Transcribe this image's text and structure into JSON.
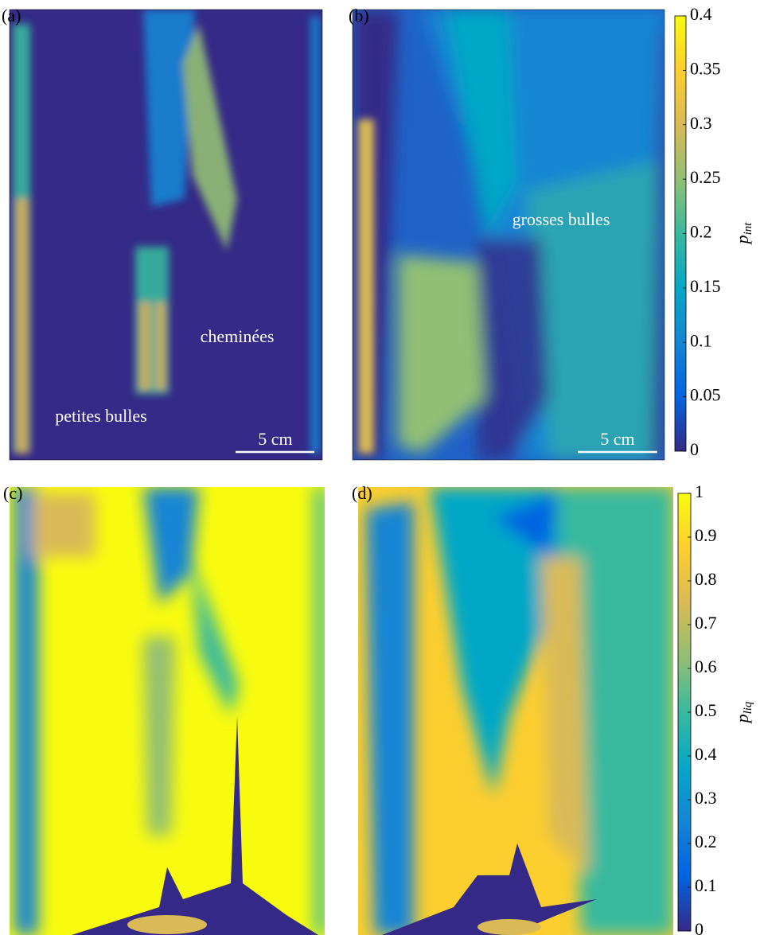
{
  "panels": [
    {
      "label": "(a)",
      "annotations": [
        "cheminées",
        "petites bulles"
      ],
      "scale_bar": "5 cm"
    },
    {
      "label": "(b)",
      "annotations": [
        "grosses bulles"
      ],
      "scale_bar": "5 cm"
    },
    {
      "label": "(c)"
    },
    {
      "label": "(d)"
    }
  ],
  "colorbars": [
    {
      "symbol": "p",
      "subscript": "int",
      "lim": [
        0,
        0.4
      ],
      "ticks": [
        0,
        0.05,
        0.1,
        0.15,
        0.2,
        0.25,
        0.3,
        0.35,
        0.4
      ]
    },
    {
      "symbol": "p",
      "subscript": "liq",
      "lim": [
        0,
        1
      ],
      "ticks": [
        0,
        0.1,
        0.2,
        0.3,
        0.4,
        0.5,
        0.6,
        0.7,
        0.8,
        0.9,
        1
      ]
    }
  ],
  "colormap": [
    "#352a87",
    "#0363e1",
    "#1485d4",
    "#06a7c6",
    "#38b99e",
    "#92bf73",
    "#d9ba56",
    "#fcce2e",
    "#f9fb0e"
  ]
}
